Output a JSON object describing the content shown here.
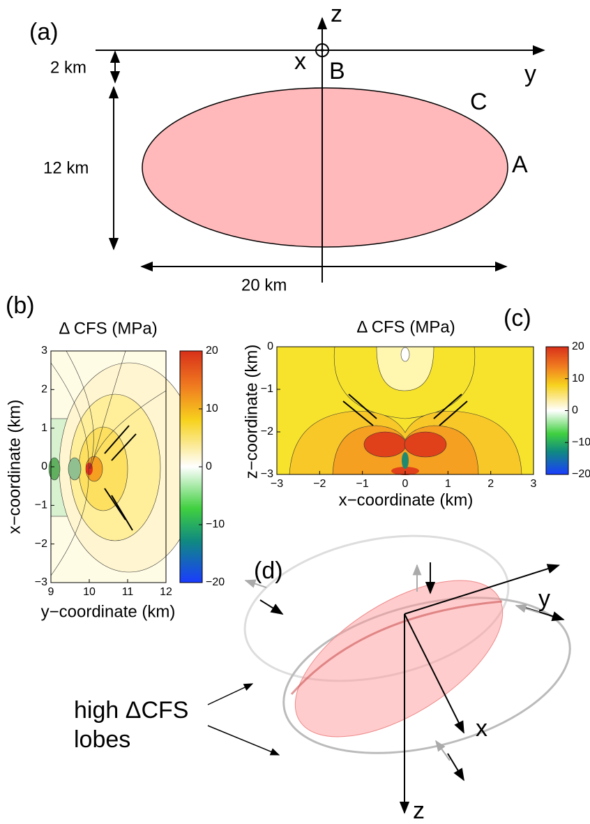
{
  "panel_a": {
    "label": "(a)",
    "axis_z": "z",
    "axis_y": "y",
    "axis_x": "x",
    "point_b": "B",
    "point_c": "C",
    "point_a": "A",
    "depth": "2 km",
    "height": "12 km",
    "width": "20 km"
  },
  "panel_b": {
    "label": "(b)",
    "title": "Δ CFS (MPa)",
    "xlabel": "y−coordinate (km)",
    "ylabel": "x−coordinate (km)",
    "xticks": [
      9,
      10,
      11,
      12
    ],
    "yticks": [
      3,
      2,
      1,
      0,
      {
        "value": -1,
        "label": "−1"
      },
      {
        "value": -2,
        "label": "−2"
      },
      {
        "value": -3,
        "label": "−3"
      }
    ],
    "colorbar_ticks": [
      20,
      10,
      0,
      {
        "value": -10,
        "label": "−10"
      },
      {
        "value": -20,
        "label": "−20"
      }
    ]
  },
  "panel_c": {
    "label": "(c)",
    "title": "Δ CFS (MPa)",
    "xlabel": "x−coordinate (km)",
    "ylabel": "z−coordinate (km)",
    "xticks": [
      {
        "value": -3,
        "label": "−3"
      },
      {
        "value": -2,
        "label": "−2"
      },
      {
        "value": -1,
        "label": "−1"
      },
      0,
      1,
      2,
      3
    ],
    "yticks": [
      0,
      {
        "value": -1,
        "label": "−1"
      },
      {
        "value": -2,
        "label": "−2"
      },
      {
        "value": -3,
        "label": "−3"
      }
    ],
    "colorbar_ticks": [
      20,
      10,
      0,
      {
        "value": -10,
        "label": "−10"
      },
      {
        "value": -20,
        "label": "−20"
      }
    ]
  },
  "panel_d": {
    "label": "(d)",
    "axis_y": "y",
    "axis_x": "x",
    "axis_z": "z",
    "annotation_line1": "high ΔCFS",
    "annotation_line2": "lobes"
  }
}
